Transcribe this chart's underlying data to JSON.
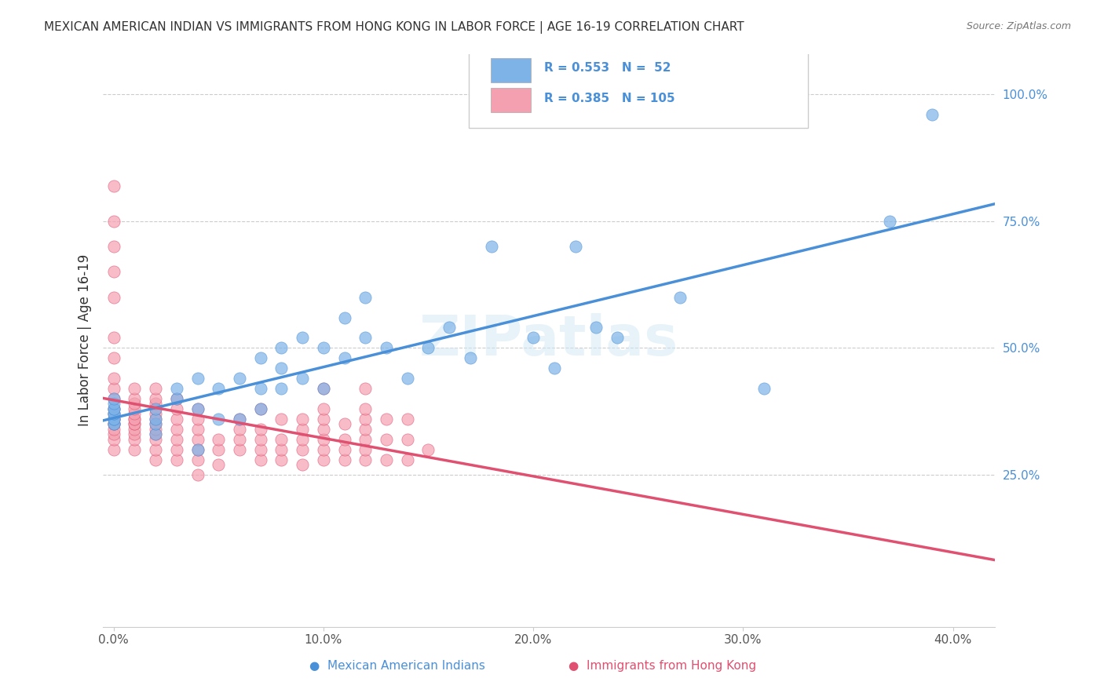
{
  "title": "MEXICAN AMERICAN INDIAN VS IMMIGRANTS FROM HONG KONG IN LABOR FORCE | AGE 16-19 CORRELATION CHART",
  "source": "Source: ZipAtlas.com",
  "ylabel": "In Labor Force | Age 16-19",
  "xlabel_ticks": [
    "0.0%",
    "10.0%",
    "20.0%",
    "30.0%",
    "40.0%"
  ],
  "ylabel_ticks": [
    "25.0%",
    "50.0%",
    "75.0%",
    "100.0%"
  ],
  "xmin": -0.005,
  "xmax": 0.42,
  "ymin": -0.05,
  "ymax": 1.08,
  "legend_labels": [
    "Mexican American Indians",
    "Immigrants from Hong Kong"
  ],
  "legend_r": [
    "R = 0.553",
    "R = 0.385"
  ],
  "legend_n": [
    "N =  52",
    "N = 105"
  ],
  "blue_color": "#7EB3E8",
  "pink_color": "#F4A0B0",
  "blue_line_color": "#4A90D9",
  "pink_line_color": "#E05070",
  "watermark": "ZIPatlas",
  "blue_scatter_x": [
    0.0,
    0.0,
    0.0,
    0.0,
    0.0,
    0.0,
    0.0,
    0.0,
    0.0,
    0.0,
    0.02,
    0.02,
    0.02,
    0.02,
    0.03,
    0.03,
    0.04,
    0.04,
    0.04,
    0.05,
    0.05,
    0.06,
    0.06,
    0.07,
    0.07,
    0.07,
    0.08,
    0.08,
    0.08,
    0.09,
    0.09,
    0.1,
    0.1,
    0.11,
    0.11,
    0.12,
    0.12,
    0.13,
    0.14,
    0.15,
    0.16,
    0.17,
    0.18,
    0.2,
    0.21,
    0.22,
    0.23,
    0.24,
    0.27,
    0.31,
    0.37,
    0.39
  ],
  "blue_scatter_y": [
    0.35,
    0.35,
    0.36,
    0.36,
    0.37,
    0.37,
    0.38,
    0.38,
    0.39,
    0.4,
    0.33,
    0.35,
    0.36,
    0.38,
    0.4,
    0.42,
    0.3,
    0.38,
    0.44,
    0.36,
    0.42,
    0.36,
    0.44,
    0.38,
    0.42,
    0.48,
    0.42,
    0.46,
    0.5,
    0.44,
    0.52,
    0.42,
    0.5,
    0.48,
    0.56,
    0.52,
    0.6,
    0.5,
    0.44,
    0.5,
    0.54,
    0.48,
    0.7,
    0.52,
    0.46,
    0.7,
    0.54,
    0.52,
    0.6,
    0.42,
    0.75,
    0.96
  ],
  "pink_scatter_x": [
    0.0,
    0.0,
    0.0,
    0.0,
    0.0,
    0.0,
    0.0,
    0.0,
    0.0,
    0.0,
    0.0,
    0.0,
    0.0,
    0.0,
    0.0,
    0.0,
    0.0,
    0.0,
    0.0,
    0.0,
    0.01,
    0.01,
    0.01,
    0.01,
    0.01,
    0.01,
    0.01,
    0.01,
    0.01,
    0.01,
    0.01,
    0.01,
    0.01,
    0.02,
    0.02,
    0.02,
    0.02,
    0.02,
    0.02,
    0.02,
    0.02,
    0.02,
    0.02,
    0.02,
    0.02,
    0.03,
    0.03,
    0.03,
    0.03,
    0.03,
    0.03,
    0.03,
    0.04,
    0.04,
    0.04,
    0.04,
    0.04,
    0.04,
    0.04,
    0.05,
    0.05,
    0.05,
    0.06,
    0.06,
    0.06,
    0.06,
    0.07,
    0.07,
    0.07,
    0.07,
    0.07,
    0.08,
    0.08,
    0.08,
    0.08,
    0.09,
    0.09,
    0.09,
    0.09,
    0.09,
    0.1,
    0.1,
    0.1,
    0.1,
    0.1,
    0.1,
    0.1,
    0.11,
    0.11,
    0.11,
    0.11,
    0.12,
    0.12,
    0.12,
    0.12,
    0.12,
    0.12,
    0.12,
    0.13,
    0.13,
    0.13,
    0.14,
    0.14,
    0.14,
    0.15
  ],
  "pink_scatter_y": [
    0.3,
    0.32,
    0.33,
    0.34,
    0.35,
    0.35,
    0.36,
    0.36,
    0.37,
    0.38,
    0.4,
    0.42,
    0.44,
    0.48,
    0.52,
    0.6,
    0.65,
    0.7,
    0.75,
    0.82,
    0.3,
    0.32,
    0.33,
    0.34,
    0.35,
    0.35,
    0.36,
    0.36,
    0.37,
    0.38,
    0.39,
    0.4,
    0.42,
    0.28,
    0.3,
    0.32,
    0.33,
    0.34,
    0.35,
    0.36,
    0.37,
    0.38,
    0.39,
    0.4,
    0.42,
    0.28,
    0.3,
    0.32,
    0.34,
    0.36,
    0.38,
    0.4,
    0.25,
    0.28,
    0.3,
    0.32,
    0.34,
    0.36,
    0.38,
    0.27,
    0.3,
    0.32,
    0.3,
    0.32,
    0.34,
    0.36,
    0.28,
    0.3,
    0.32,
    0.34,
    0.38,
    0.28,
    0.3,
    0.32,
    0.36,
    0.27,
    0.3,
    0.32,
    0.34,
    0.36,
    0.28,
    0.3,
    0.32,
    0.34,
    0.36,
    0.38,
    0.42,
    0.28,
    0.3,
    0.32,
    0.35,
    0.28,
    0.3,
    0.32,
    0.34,
    0.36,
    0.38,
    0.42,
    0.28,
    0.32,
    0.36,
    0.28,
    0.32,
    0.36,
    0.3
  ]
}
